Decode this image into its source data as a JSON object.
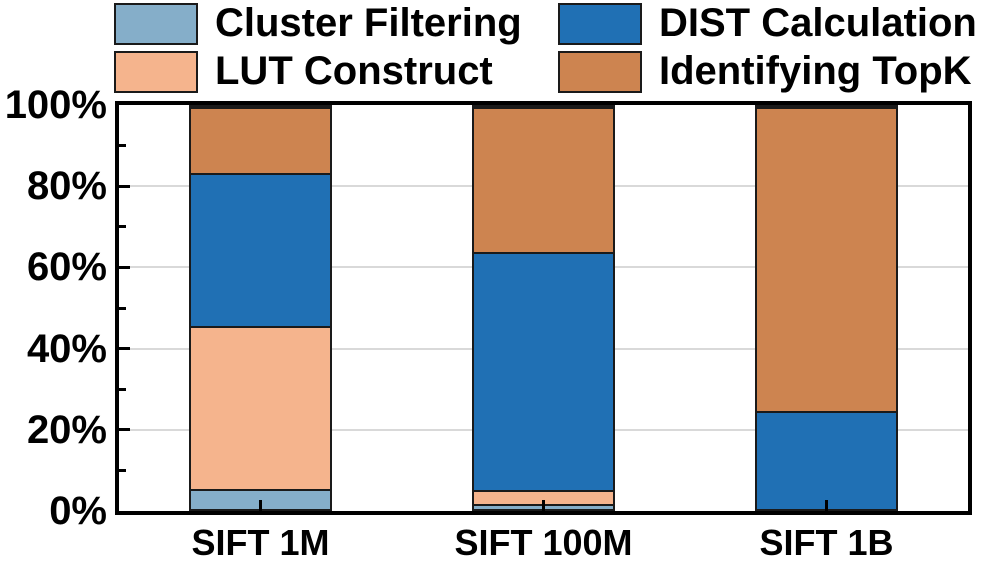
{
  "chart_data": {
    "type": "bar",
    "stacked": true,
    "unit": "%",
    "title": "",
    "xlabel": "",
    "ylabel": "",
    "categories": [
      "SIFT 1M",
      "SIFT 100M",
      "SIFT 1B"
    ],
    "series": [
      {
        "name": "Cluster Filtering",
        "color": "#85AEC9",
        "values": [
          5.0,
          1.2,
          0.0
        ]
      },
      {
        "name": "LUT Construct",
        "color": "#F5B48D",
        "values": [
          40.5,
          3.6,
          0.0
        ]
      },
      {
        "name": "DIST Calculation",
        "color": "#2070B4",
        "values": [
          38.2,
          59.2,
          24.3
        ]
      },
      {
        "name": "Identifying TopK",
        "color": "#CD8450",
        "values": [
          16.3,
          36.0,
          75.7
        ]
      }
    ],
    "ylim": [
      0,
      100
    ],
    "y_ticks": [
      {
        "value": 0,
        "label": "0%"
      },
      {
        "value": 20,
        "label": "20%"
      },
      {
        "value": 40,
        "label": "40%"
      },
      {
        "value": 60,
        "label": "60%"
      },
      {
        "value": 80,
        "label": "80%"
      },
      {
        "value": 100,
        "label": "100%"
      }
    ],
    "y_minor_ticks": [
      10,
      30,
      50,
      70,
      90
    ],
    "grid": {
      "show_y_major": true,
      "color": "#D9D9D9"
    },
    "legend_position": "top"
  },
  "style": {
    "background": "#FFFFFF",
    "axis_color": "#000000",
    "bar_border_color": "#1A1A1A",
    "gridline_color": "#D9D9D9",
    "text_color": "#000000"
  }
}
